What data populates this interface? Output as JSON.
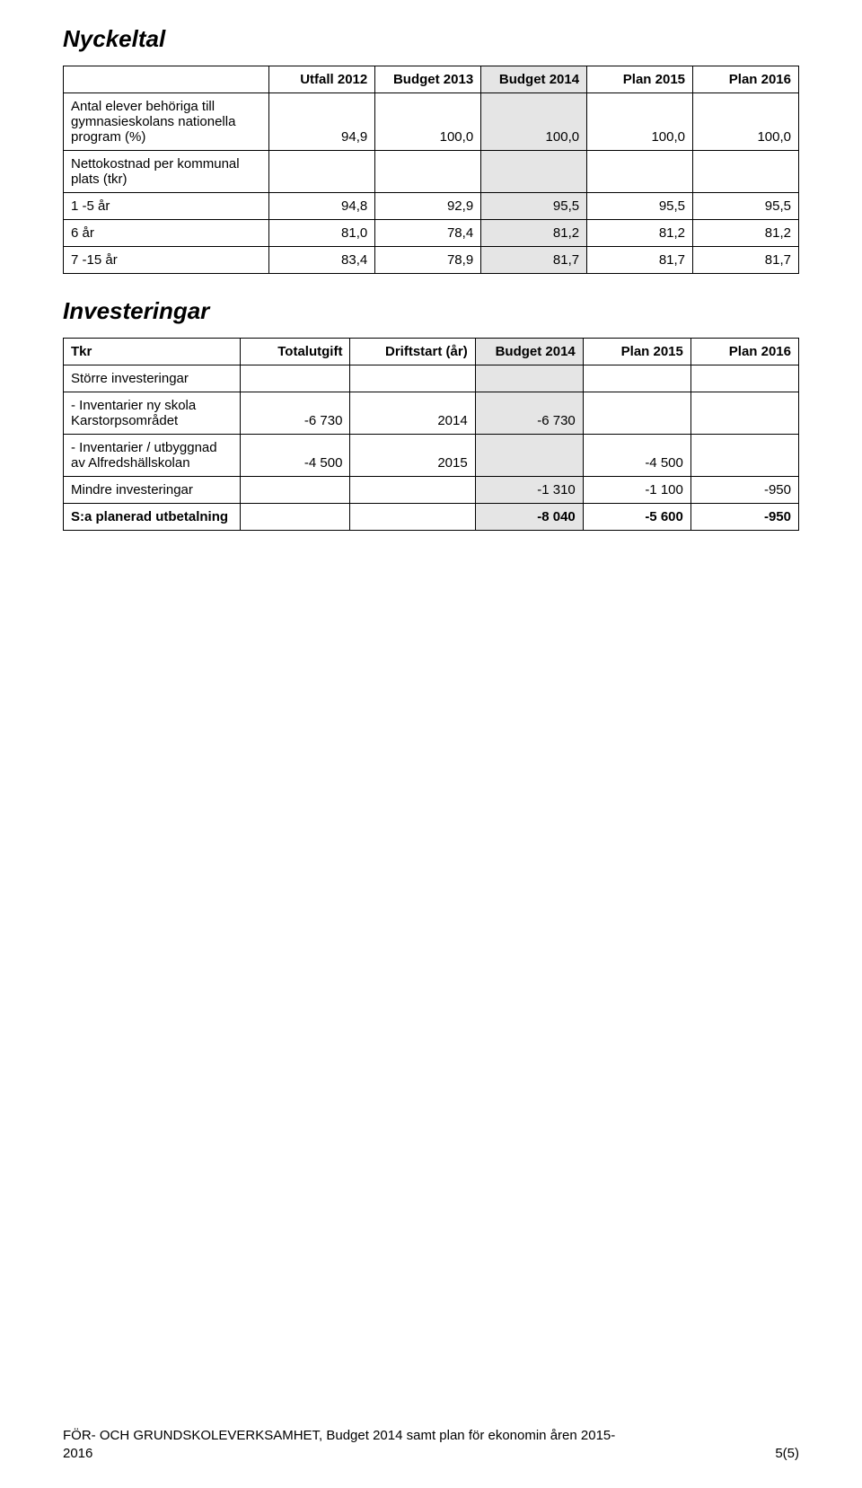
{
  "colors": {
    "background": "#ffffff",
    "text": "#000000",
    "border": "#000000",
    "highlight_col": "#e5e5e5"
  },
  "sections": {
    "nyckeltal": {
      "title": "Nyckeltal",
      "headers": [
        "",
        "Utfall 2012",
        "Budget 2013",
        "Budget 2014",
        "Plan 2015",
        "Plan 2016"
      ],
      "rows": [
        {
          "label": "Antal elever behöriga till gymnasieskolans nationella program (%)",
          "values": [
            "94,9",
            "100,0",
            "100,0",
            "100,0",
            "100,0"
          ]
        },
        {
          "label": "Nettokostnad per kommunal plats (tkr)",
          "values": [
            "",
            "",
            "",
            "",
            ""
          ]
        },
        {
          "label": "1 -5 år",
          "values": [
            "94,8",
            "92,9",
            "95,5",
            "95,5",
            "95,5"
          ]
        },
        {
          "label": "6 år",
          "values": [
            "81,0",
            "78,4",
            "81,2",
            "81,2",
            "81,2"
          ]
        },
        {
          "label": "7 -15 år",
          "values": [
            "83,4",
            "78,9",
            "81,7",
            "81,7",
            "81,7"
          ]
        }
      ]
    },
    "investeringar": {
      "title": "Investeringar",
      "headers": [
        "Tkr",
        "Totalutgift",
        "Driftstart (år)",
        "Budget 2014",
        "Plan 2015",
        "Plan 2016"
      ],
      "rows": [
        {
          "label": "Större investeringar",
          "values": [
            "",
            "",
            "",
            "",
            ""
          ],
          "bold": false
        },
        {
          "label": "- Inventarier ny skola Karstorpsområdet",
          "values": [
            "-6 730",
            "2014",
            "-6 730",
            "",
            ""
          ],
          "bold": false
        },
        {
          "label": "- Inventarier / utbyggnad av Alfredshällskolan",
          "values": [
            "-4 500",
            "2015",
            "",
            "-4 500",
            ""
          ],
          "bold": false
        },
        {
          "label": "Mindre investeringar",
          "values": [
            "",
            "",
            "-1 310",
            "-1 100",
            "-950"
          ],
          "bold": false
        },
        {
          "label": "S:a planerad utbetalning",
          "values": [
            "",
            "",
            "-8 040",
            "-5 600",
            "-950"
          ],
          "bold": true
        }
      ]
    }
  },
  "footer": {
    "line1": "FÖR- OCH GRUNDSKOLEVERKSAMHET, Budget 2014 samt plan för ekonomin åren 2015-",
    "line2": "2016",
    "page": "5(5)"
  }
}
